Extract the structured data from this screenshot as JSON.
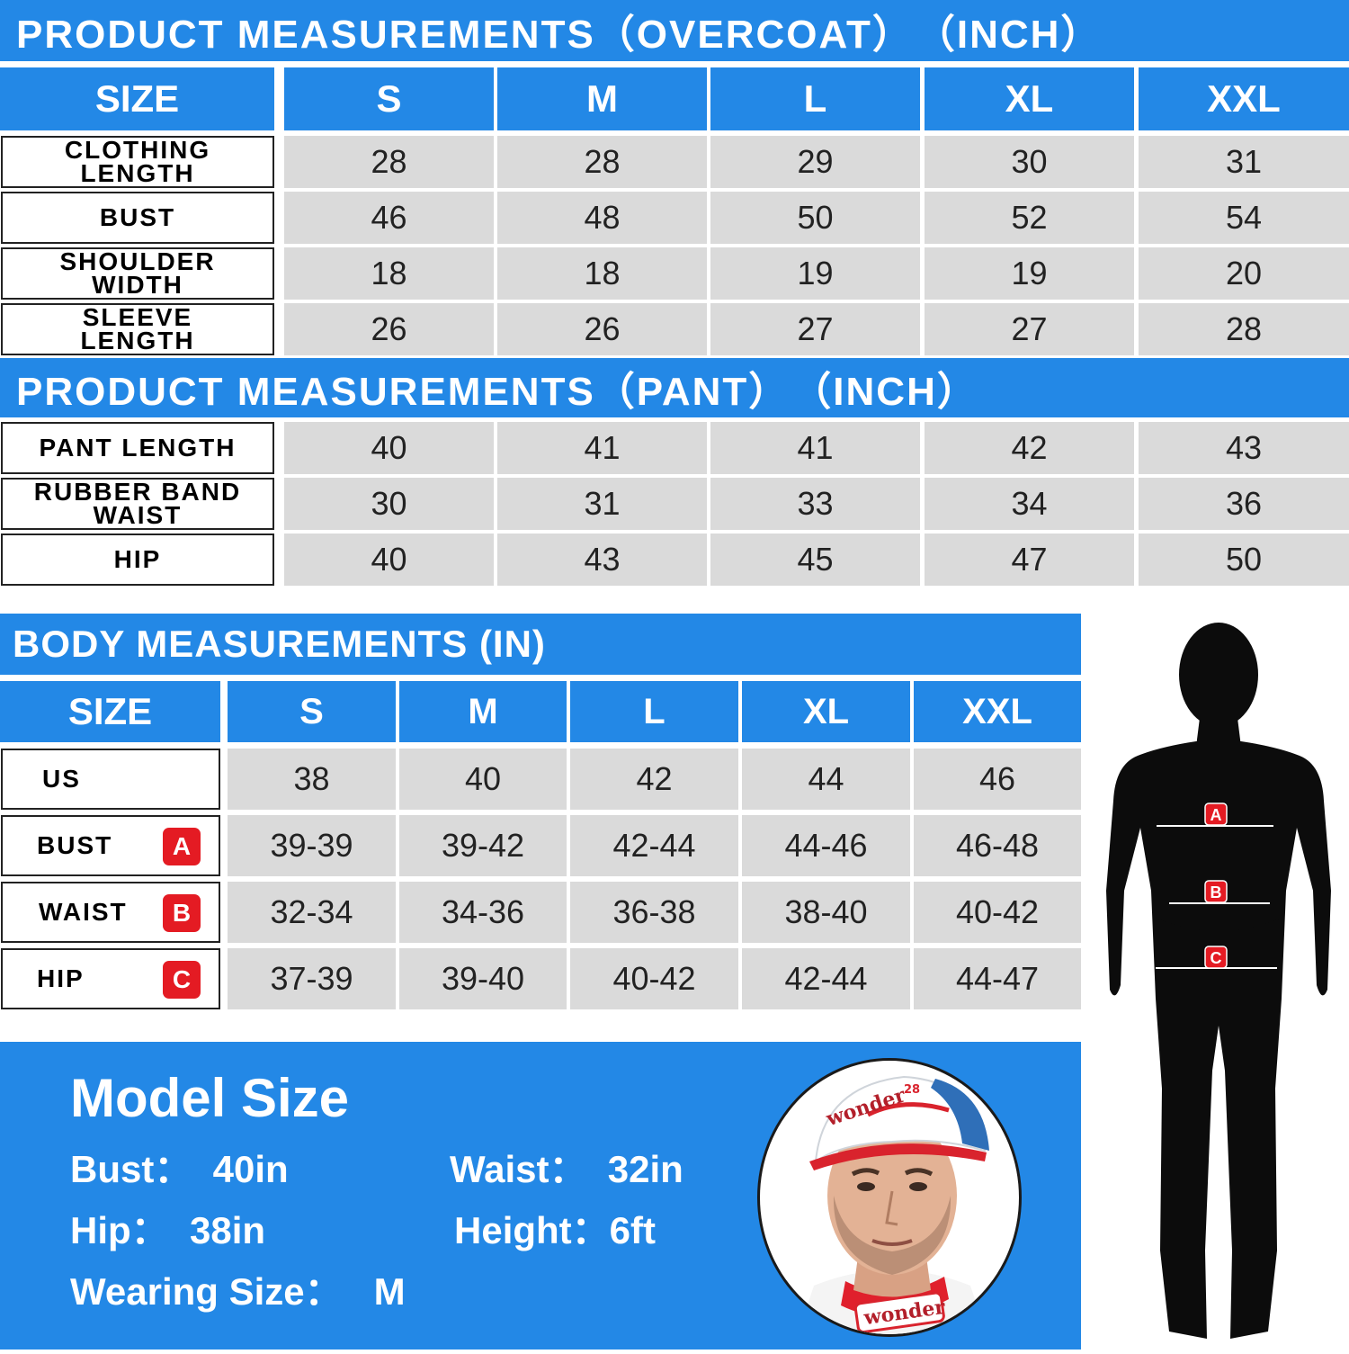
{
  "overcoat": {
    "title": "PRODUCT MEASUREMENTS（OVERCOAT）　（INCH）",
    "size_label": "SIZE",
    "sizes": [
      "S",
      "M",
      "L",
      "XL",
      "XXL"
    ],
    "rows": [
      {
        "label": "CLOTHING LENGTH",
        "values": [
          "28",
          "28",
          "29",
          "30",
          "31"
        ]
      },
      {
        "label": "BUST",
        "values": [
          "46",
          "48",
          "50",
          "52",
          "54"
        ]
      },
      {
        "label": "SHOULDER WIDTH",
        "values": [
          "18",
          "18",
          "19",
          "19",
          "20"
        ]
      },
      {
        "label": "SLEEVE LENGTH",
        "values": [
          "26",
          "26",
          "27",
          "27",
          "28"
        ]
      }
    ]
  },
  "pant": {
    "title": "PRODUCT MEASUREMENTS（PANT）　（INCH）",
    "rows": [
      {
        "label": "PANT LENGTH",
        "values": [
          "40",
          "41",
          "41",
          "42",
          "43"
        ]
      },
      {
        "label": "RUBBER BAND WAIST",
        "values": [
          "30",
          "31",
          "33",
          "34",
          "36"
        ]
      },
      {
        "label": "HIP",
        "values": [
          "40",
          "43",
          "45",
          "47",
          "50"
        ]
      }
    ]
  },
  "body": {
    "title": "BODY MEASUREMENTS (IN)",
    "size_label": "SIZE",
    "sizes": [
      "S",
      "M",
      "L",
      "XL",
      "XXL"
    ],
    "rows": [
      {
        "label": "US",
        "badge": "",
        "values": [
          "38",
          "40",
          "42",
          "44",
          "46"
        ]
      },
      {
        "label": "BUST",
        "badge": "A",
        "values": [
          "39-39",
          "39-42",
          "42-44",
          "44-46",
          "46-48"
        ]
      },
      {
        "label": "WAIST",
        "badge": "B",
        "values": [
          "32-34",
          "34-36",
          "36-38",
          "38-40",
          "40-42"
        ]
      },
      {
        "label": "HIP",
        "badge": "C",
        "values": [
          "37-39",
          "39-40",
          "40-42",
          "42-44",
          "44-47"
        ]
      }
    ]
  },
  "model": {
    "title": "Model Size",
    "bust": "Bust：  40in",
    "waist": "Waist：  32in",
    "hip": "Hip：  38in",
    "height": "Height：6ft",
    "wearing": "Wearing Size：   M",
    "cap_text": "wonder",
    "cap_number": "28",
    "collar_text": "wonder"
  },
  "figure_markers": [
    "A",
    "B",
    "C"
  ],
  "colors": {
    "accent": "#2388e6",
    "badge": "#e41b23",
    "cell": "#dadada"
  }
}
